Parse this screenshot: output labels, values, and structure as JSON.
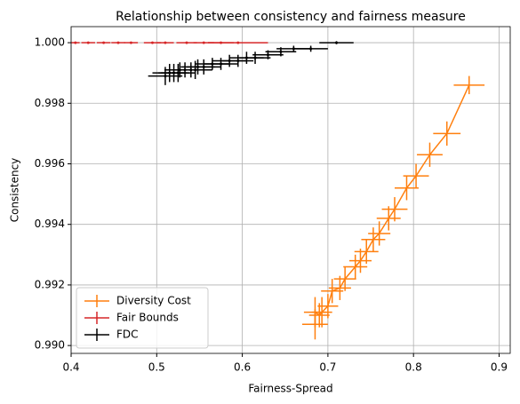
{
  "chart_data": {
    "type": "errorbar",
    "title": "Relationship between consistency and fairness measure",
    "xlabel": "Fairness-Spread",
    "ylabel": "Consistency",
    "xlim": [
      0.4,
      0.913
    ],
    "ylim": [
      0.98974,
      1.00053
    ],
    "xticks": [
      0.4,
      0.5,
      0.6,
      0.7,
      0.8,
      0.9
    ],
    "yticks": [
      {
        "value": 0.99,
        "label": "0.990"
      },
      {
        "value": 0.992,
        "label": "0.992"
      },
      {
        "value": 0.994,
        "label": "0.994"
      },
      {
        "value": 0.996,
        "label": "0.996"
      },
      {
        "value": 0.998,
        "label": "0.998"
      },
      {
        "value": 1.0,
        "label": "1.000"
      }
    ],
    "grid": true,
    "legend": "lower left",
    "series": [
      {
        "name": "Diversity Cost",
        "color": "#ff7f0e",
        "linestyle": "solid",
        "marker": "none",
        "x": [
          0.865,
          0.839,
          0.819,
          0.803,
          0.792,
          0.778,
          0.771,
          0.76,
          0.753,
          0.745,
          0.738,
          0.732,
          0.72,
          0.714,
          0.705,
          0.7,
          0.693,
          0.69,
          0.685,
          0.685
        ],
        "values": [
          0.9986,
          0.997,
          0.9963,
          0.9956,
          0.9952,
          0.9945,
          0.9942,
          0.9937,
          0.9935,
          0.9931,
          0.9928,
          0.9926,
          0.9922,
          0.9919,
          0.9918,
          0.9913,
          0.9911,
          0.991,
          0.9911,
          0.9907
        ],
        "xerr": [
          0.018,
          0.016,
          0.015,
          0.015,
          0.014,
          0.015,
          0.014,
          0.013,
          0.014,
          0.014,
          0.013,
          0.014,
          0.013,
          0.013,
          0.013,
          0.012,
          0.012,
          0.012,
          0.013,
          0.015
        ],
        "yerr": [
          0.0003,
          0.0004,
          0.0004,
          0.0004,
          0.0004,
          0.0004,
          0.0004,
          0.0004,
          0.0004,
          0.0004,
          0.0004,
          0.0004,
          0.0004,
          0.0004,
          0.0004,
          0.0004,
          0.0005,
          0.0004,
          0.0005,
          0.0005
        ]
      },
      {
        "name": "Fair Bounds",
        "color": "#d62728",
        "linestyle": "none",
        "marker": "dot",
        "x": [
          0.405,
          0.42,
          0.438,
          0.455,
          0.47,
          0.495,
          0.51,
          0.535,
          0.555,
          0.575,
          0.595
        ],
        "values": [
          1.0,
          1.0,
          1.0,
          1.0,
          1.0,
          1.0,
          1.0,
          1.0,
          1.0,
          1.0,
          1.0
        ],
        "xerr": [
          0.005,
          0.008,
          0.008,
          0.008,
          0.008,
          0.01,
          0.01,
          0.012,
          0.012,
          0.015,
          0.035
        ],
        "yerr": [
          0,
          0,
          0,
          0,
          0,
          0,
          0,
          0,
          0,
          0,
          0
        ]
      },
      {
        "name": "FDC",
        "color": "#000000",
        "linestyle": "none",
        "marker": "dot",
        "x": [
          0.71,
          0.68,
          0.66,
          0.645,
          0.63,
          0.615,
          0.605,
          0.595,
          0.585,
          0.575,
          0.565,
          0.555,
          0.548,
          0.54,
          0.533,
          0.527,
          0.52,
          0.515,
          0.51,
          0.525,
          0.545
        ],
        "values": [
          1.0,
          0.9998,
          0.9998,
          0.9997,
          0.9996,
          0.9995,
          0.9995,
          0.9994,
          0.9994,
          0.9993,
          0.9993,
          0.9992,
          0.9992,
          0.9991,
          0.9991,
          0.9991,
          0.999,
          0.999,
          0.9989,
          0.999,
          0.9991
        ],
        "xerr": [
          0.02,
          0.02,
          0.02,
          0.018,
          0.018,
          0.018,
          0.02,
          0.018,
          0.02,
          0.02,
          0.02,
          0.02,
          0.02,
          0.02,
          0.018,
          0.018,
          0.018,
          0.02,
          0.02,
          0.02,
          0.02
        ],
        "yerr": [
          5e-05,
          0.0001,
          0.0001,
          0.00015,
          0.00015,
          0.0002,
          0.0002,
          0.0002,
          0.0002,
          0.0002,
          0.0002,
          0.00025,
          0.00025,
          0.00025,
          0.00025,
          0.00025,
          0.0003,
          0.0003,
          0.0003,
          0.0003,
          0.0003
        ]
      }
    ]
  }
}
